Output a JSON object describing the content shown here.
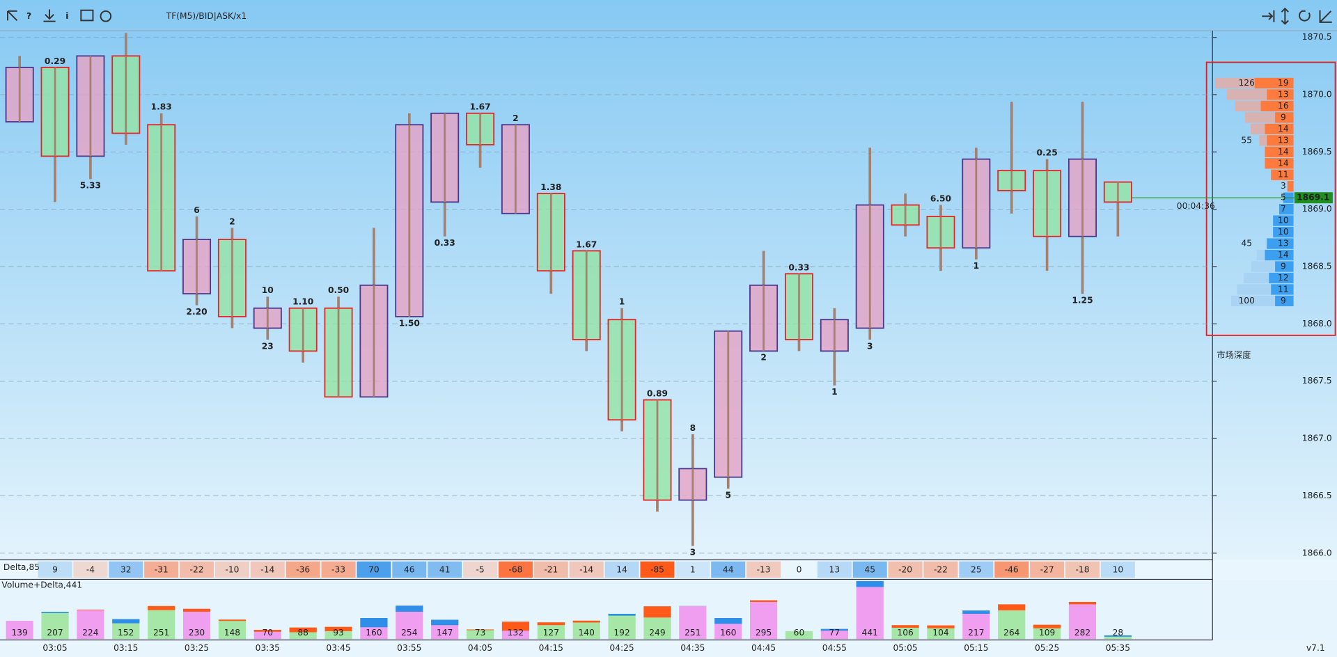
{
  "toolbar": {
    "label": "TF(M5)/BID|ASK/x1"
  },
  "version": "v7.1",
  "chart_data": {
    "type": "candlestick",
    "categories": [
      null,
      "03:05",
      null,
      "03:15",
      null,
      "03:25",
      null,
      "03:35",
      null,
      "03:45",
      null,
      "03:55",
      null,
      "04:05",
      null,
      "04:15",
      null,
      "04:25",
      null,
      "04:35",
      null,
      "04:45",
      null,
      "04:55",
      null,
      "05:05",
      null,
      "05:15",
      null,
      "05:25",
      null,
      "05:35"
    ],
    "open": [
      1869.8,
      1870.2,
      1869.5,
      1870.3,
      1869.7,
      1868.3,
      1868.7,
      1868.0,
      1868.1,
      1868.1,
      1867.4,
      1868.1,
      1869.1,
      1869.8,
      1869.0,
      1869.1,
      1868.6,
      1868.0,
      1867.3,
      1866.5,
      1866.7,
      1867.8,
      1868.4,
      1867.8,
      1868.0,
      1869.0,
      1868.9,
      1868.7,
      1869.3,
      1869.3,
      1868.8,
      1869.2
    ],
    "high": [
      1870.3,
      1870.2,
      1870.3,
      1870.5,
      1869.8,
      1868.9,
      1868.8,
      1868.2,
      1868.1,
      1868.2,
      1868.8,
      1869.8,
      1869.8,
      1869.8,
      1869.7,
      1869.1,
      1868.6,
      1868.1,
      1867.3,
      1867.0,
      1867.9,
      1868.6,
      1868.4,
      1868.1,
      1869.5,
      1869.1,
      1869.0,
      1869.5,
      1869.9,
      1869.4,
      1869.9,
      1869.2
    ],
    "low": [
      1869.8,
      1869.1,
      1869.3,
      1869.6,
      1868.5,
      1868.2,
      1868.0,
      1867.9,
      1867.7,
      1867.4,
      1867.4,
      1868.1,
      1868.8,
      1869.4,
      1869.0,
      1868.3,
      1867.8,
      1867.1,
      1866.4,
      1866.1,
      1866.6,
      1867.8,
      1867.8,
      1867.5,
      1867.9,
      1868.8,
      1868.5,
      1868.6,
      1869.0,
      1868.5,
      1868.3,
      1868.8
    ],
    "close": [
      1870.2,
      1869.5,
      1870.3,
      1869.7,
      1868.5,
      1868.7,
      1868.1,
      1868.1,
      1867.8,
      1867.4,
      1868.3,
      1869.7,
      1869.8,
      1869.6,
      1869.7,
      1868.5,
      1867.9,
      1867.2,
      1866.5,
      1866.7,
      1867.9,
      1868.3,
      1867.9,
      1868.0,
      1869.0,
      1868.9,
      1868.7,
      1869.4,
      1869.2,
      1868.8,
      1869.4,
      1869.1
    ],
    "up_color": "#e6a3c4",
    "up_border": "#4b3a8c",
    "down_color": "#93e3a4",
    "down_border": "#e02828",
    "wick_color": "#a38070",
    "top_labels": [
      null,
      "0.29",
      null,
      null,
      "1.83",
      "6",
      "2",
      "10",
      "1.10",
      "0.50",
      null,
      null,
      null,
      "1.67",
      "2",
      "1.38",
      "1.67",
      "1",
      "0.89",
      "8",
      null,
      null,
      "0.33",
      null,
      null,
      null,
      "6.50",
      null,
      null,
      "0.25",
      null,
      null
    ],
    "top_label_colors": [
      null,
      "#8797a8",
      null,
      null,
      "#1a8a1a",
      "#e02020",
      "#1a8a1a",
      "#1a8a1a",
      "#1a8a1a",
      "#8797a8",
      null,
      null,
      null,
      "#1a8a1a",
      "#1a8a1a",
      "#1a8a1a",
      "#1a8a1a",
      "#1a8a1a",
      "#1a8a1a",
      "#e02020",
      null,
      null,
      "#8797a8",
      null,
      null,
      null,
      "#1a8a1a",
      null,
      null,
      "#8797a8",
      null,
      null
    ],
    "bottom_labels": [
      null,
      null,
      "5.33",
      null,
      null,
      "2.20",
      null,
      "23",
      null,
      null,
      null,
      "1.50",
      "0.33",
      null,
      null,
      null,
      null,
      null,
      null,
      "3",
      "5",
      "2",
      null,
      "1",
      "3",
      null,
      null,
      "1",
      null,
      null,
      "1.25",
      null
    ],
    "bottom_label_colors": [
      null,
      null,
      "#1a8a1a",
      null,
      null,
      "#1a8a1a",
      null,
      "#e02020",
      null,
      null,
      null,
      "#1a8a1a",
      "#8797a8",
      null,
      null,
      null,
      null,
      null,
      null,
      "#1a8a1a",
      "#e02020",
      "#1a8a1a",
      null,
      "#1a8a1a",
      "#1a8a1a",
      null,
      null,
      "#1a8a1a",
      null,
      null,
      "#1a8a1a",
      null
    ],
    "ylim": [
      1865.95,
      1870.55
    ],
    "yticks": [
      1870.5,
      {
        "value": 1870,
        "label": "1870.0"
      },
      1869.5,
      {
        "value": 1869,
        "label": "1869.0"
      },
      1868.5,
      {
        "value": 1868,
        "label": "1868.0"
      },
      1867.5,
      {
        "value": 1867,
        "label": "1867.0"
      },
      1866.5,
      {
        "value": 1866,
        "label": "1866.0"
      }
    ],
    "grid": true,
    "current_price": 1869.1,
    "current_price_color": "#1f8f1f",
    "timer": "00:04:36",
    "delta": {
      "title": "Delta,85",
      "values": [
        null,
        9,
        -4,
        32,
        -31,
        -22,
        -10,
        -14,
        -36,
        -33,
        70,
        46,
        41,
        -5,
        -68,
        -21,
        -14,
        14,
        -85,
        1,
        44,
        -13,
        0,
        13,
        45,
        -20,
        -22,
        25,
        -46,
        -27,
        -18,
        10
      ]
    },
    "volume": {
      "title": "Volume+Delta,441",
      "values": [
        139,
        207,
        224,
        152,
        251,
        230,
        148,
        70,
        88,
        93,
        160,
        254,
        147,
        73,
        132,
        127,
        140,
        192,
        249,
        251,
        160,
        295,
        60,
        77,
        441,
        106,
        104,
        217,
        264,
        109,
        282,
        28
      ],
      "up_color": "#ef9ef0",
      "down_color": "#a6e6a6",
      "positive_color": "#2f8fe8",
      "negative_color": "#ff5a1a"
    },
    "depth": {
      "title": "市场深度",
      "ask_prices": [
        1870.1,
        1870.0,
        1869.9,
        1869.8,
        1869.7,
        1869.6,
        1869.5,
        1869.4,
        1869.3,
        1869.2
      ],
      "asks": [
        19,
        13,
        16,
        9,
        14,
        13,
        14,
        14,
        11,
        3
      ],
      "ask_cum_labels": [
        "126",
        null,
        null,
        null,
        null,
        "55",
        null,
        null,
        null,
        null
      ],
      "bid_prices": [
        1869.1,
        1869.0,
        1868.9,
        1868.8,
        1868.7,
        1868.6,
        1868.5,
        1868.4,
        1868.3,
        1868.2
      ],
      "bids": [
        5,
        7,
        10,
        10,
        13,
        14,
        9,
        12,
        11,
        9
      ],
      "bid_cum_labels": [
        null,
        null,
        null,
        null,
        "45",
        null,
        null,
        null,
        null,
        "100"
      ],
      "ask_color": "#ff7a3d",
      "bid_color": "#3d9ff0",
      "ask_cum_color": "#d8b2b0",
      "bid_cum_color": "#a9d3f3"
    }
  }
}
